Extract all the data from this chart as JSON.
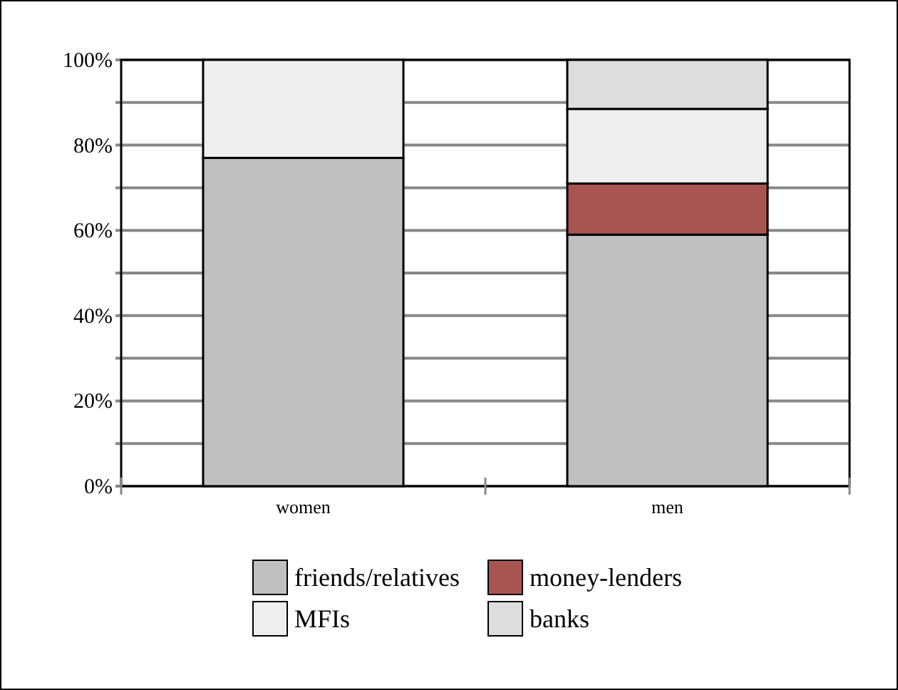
{
  "chart_data": {
    "type": "bar",
    "stacked": true,
    "categories": [
      "women",
      "men"
    ],
    "series": [
      {
        "name": "friends/relatives",
        "color": "#c0c0c0",
        "values": [
          77,
          59
        ]
      },
      {
        "name": "money-lenders",
        "color": "#a85552",
        "values": [
          0,
          12
        ]
      },
      {
        "name": "MFIs",
        "color": "#eeeeee",
        "values": [
          23,
          17.5
        ]
      },
      {
        "name": "banks",
        "color": "#dddddd",
        "values": [
          0,
          11.5
        ]
      }
    ],
    "ylim": [
      0,
      100
    ],
    "yticks": [
      {
        "value": 0,
        "label": "0%"
      },
      {
        "value": 10,
        "label": null
      },
      {
        "value": 20,
        "label": "20%"
      },
      {
        "value": 30,
        "label": null
      },
      {
        "value": 40,
        "label": "40%"
      },
      {
        "value": 50,
        "label": null
      },
      {
        "value": 60,
        "label": "60%"
      },
      {
        "value": 70,
        "label": null
      },
      {
        "value": 80,
        "label": "80%"
      },
      {
        "value": 90,
        "label": null
      },
      {
        "value": 100,
        "label": "100%"
      }
    ],
    "grid": "y",
    "legend": "bottom"
  }
}
